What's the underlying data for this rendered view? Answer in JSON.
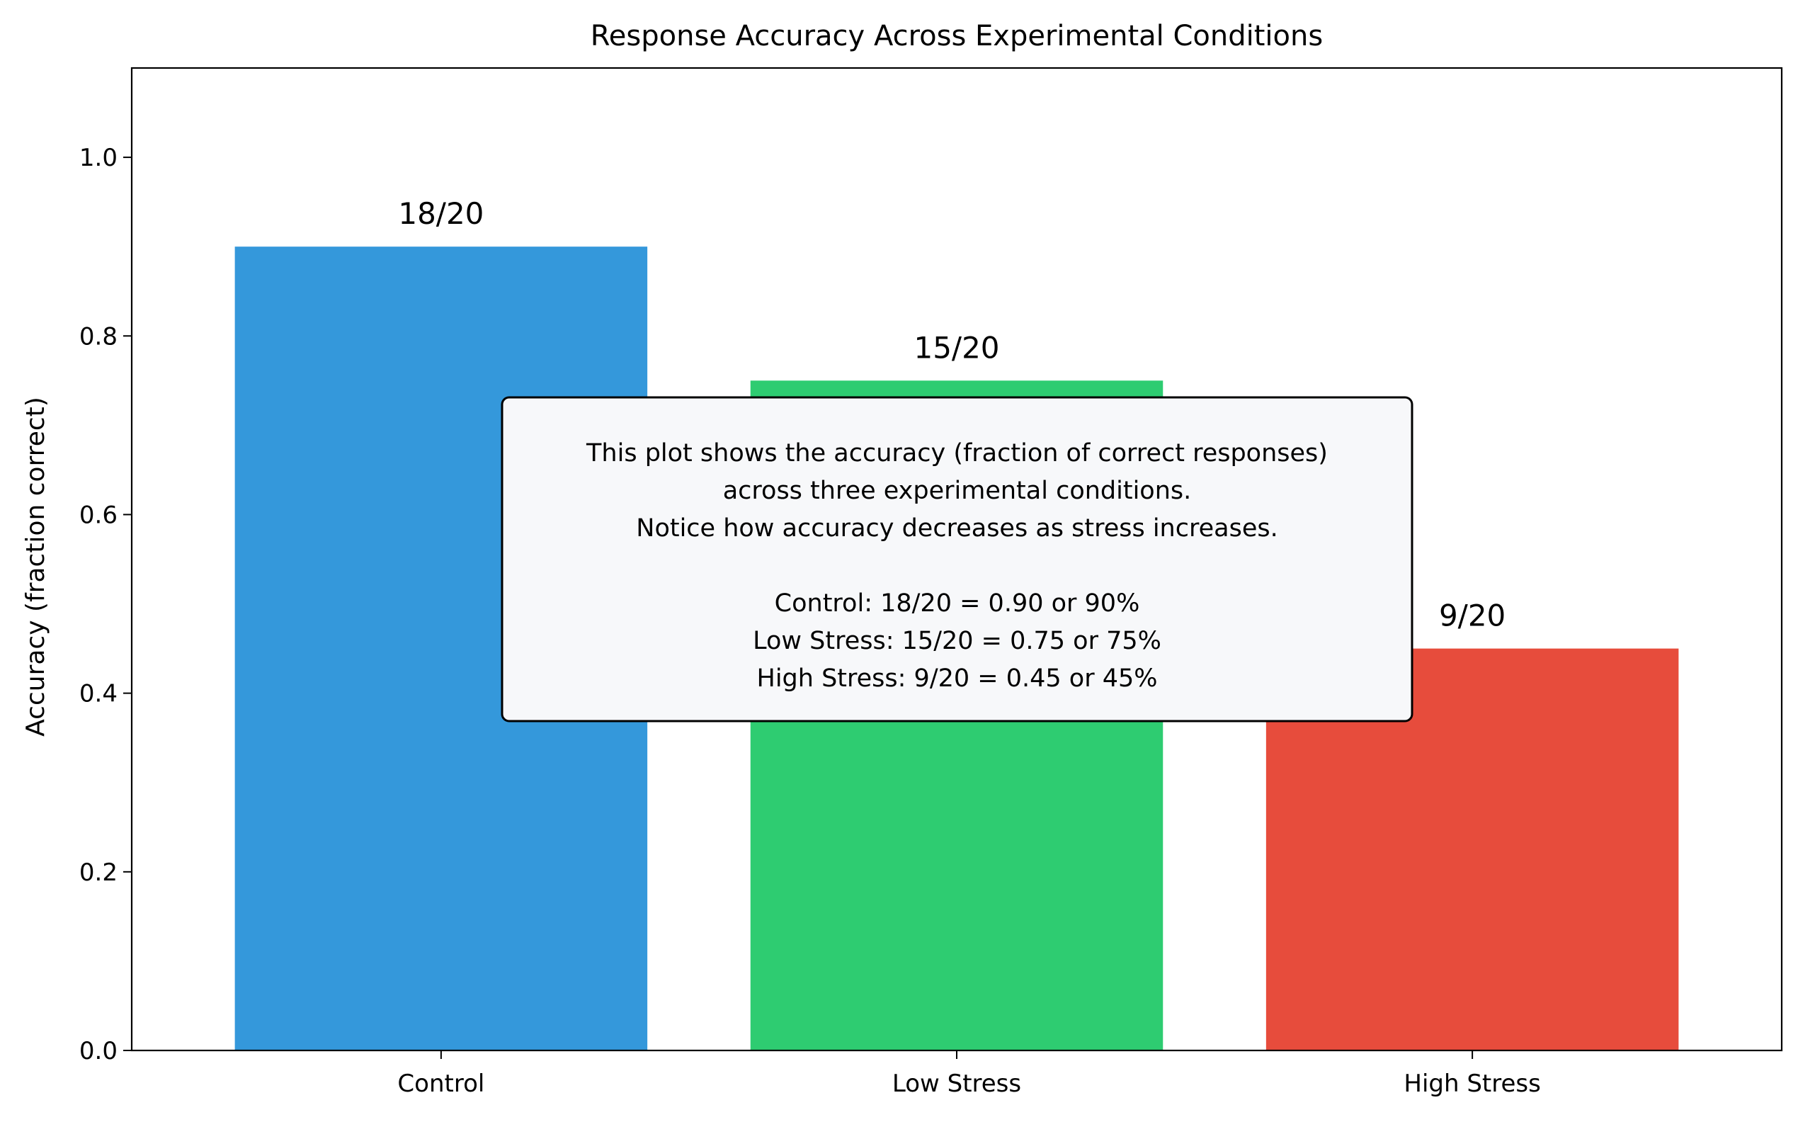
{
  "chart_data": {
    "type": "bar",
    "title": "Response Accuracy Across Experimental Conditions",
    "xlabel": "",
    "ylabel": "Accuracy (fraction correct)",
    "ylim": [
      0,
      1.1
    ],
    "yticks": [
      0.0,
      0.2,
      0.4,
      0.6,
      0.8,
      1.0
    ],
    "ytick_labels": [
      "0.0",
      "0.2",
      "0.4",
      "0.6",
      "0.8",
      "1.0"
    ],
    "categories": [
      "Control",
      "Low Stress",
      "High Stress"
    ],
    "values": [
      0.9,
      0.75,
      0.45
    ],
    "data_labels": [
      "18/20",
      "15/20",
      "9/20"
    ],
    "colors": [
      "#3498db",
      "#2ecc71",
      "#e74c3c"
    ],
    "grid": false,
    "annotation": {
      "lines": [
        "This plot shows the accuracy (fraction of correct responses)",
        "across three experimental conditions.",
        "Notice how accuracy decreases as stress increases.",
        "",
        "Control: 18/20 = 0.90 or 90%",
        "Low Stress: 15/20 = 0.75 or 75%",
        "High Stress: 9/20 = 0.45 or 45%"
      ],
      "background": "#f7f8fa",
      "border": "#000000"
    }
  }
}
